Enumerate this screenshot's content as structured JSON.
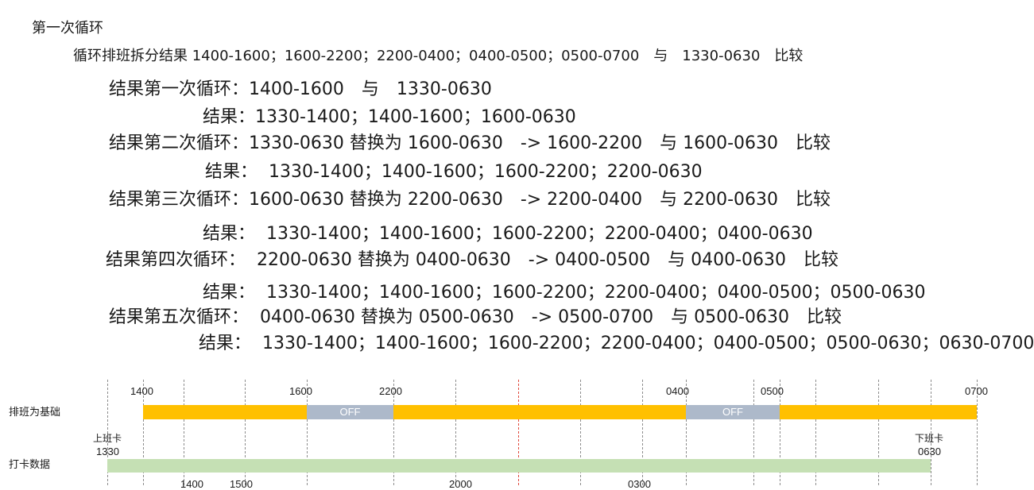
{
  "title": "第一次循环",
  "split_line": "循环排班拆分结果 1400-1600；1600-2200；2200-0400；0400-0500；0500-0700　与　1330-0630　比较",
  "steps": [
    {
      "round": "结果第一次循环：1400-1600　与　1330-0630",
      "result": "结果：1330-1400；1400-1600；1600-0630"
    },
    {
      "round": "结果第二次循环：1330-0630 替换为 1600-0630　-> 1600-2200　与 1600-0630　比较",
      "result": "结果：  1330-1400；1400-1600；1600-2200；2200-0630"
    },
    {
      "round": "结果第三次循环：1600-0630 替换为 2200-0630　-> 2200-0400　与 2200-0630　比较",
      "result": "结果：  1330-1400；1400-1600；1600-2200；2200-0400；0400-0630"
    },
    {
      "round": "结果第四次循环：  2200-0630 替换为 0400-0630　-> 0400-0500　与 0400-0630　比较",
      "result": "结果：  1330-1400；1400-1600；1600-2200；2200-0400；0400-0500；0500-0630"
    },
    {
      "round": "结果第五次循环：  0400-0630 替换为 0500-0630　-> 0500-0700　与 0500-0630　比较",
      "result": "结果：  1330-1400；1400-1600；1600-2200；2200-0400；0400-0500；0500-0630；0630-0700"
    }
  ],
  "timeline": {
    "schedule_row_label": "排班为基础",
    "punch_row_label": "打卡数据",
    "schedule_ticks": [
      "1400",
      "1600",
      "2200",
      "0400",
      "0500",
      "0700"
    ],
    "off_label": "OFF",
    "clock_in_label": "上班卡",
    "clock_in_time": "1330",
    "clock_out_label": "下班卡",
    "clock_out_time": "0630",
    "bottom_partial": [
      "1400",
      "1500",
      "2000",
      "0300"
    ],
    "colors": {
      "work": "#ffc000",
      "off": "#adb9ca",
      "punch": "#c5e0b4",
      "midline": "#e0473a"
    }
  }
}
